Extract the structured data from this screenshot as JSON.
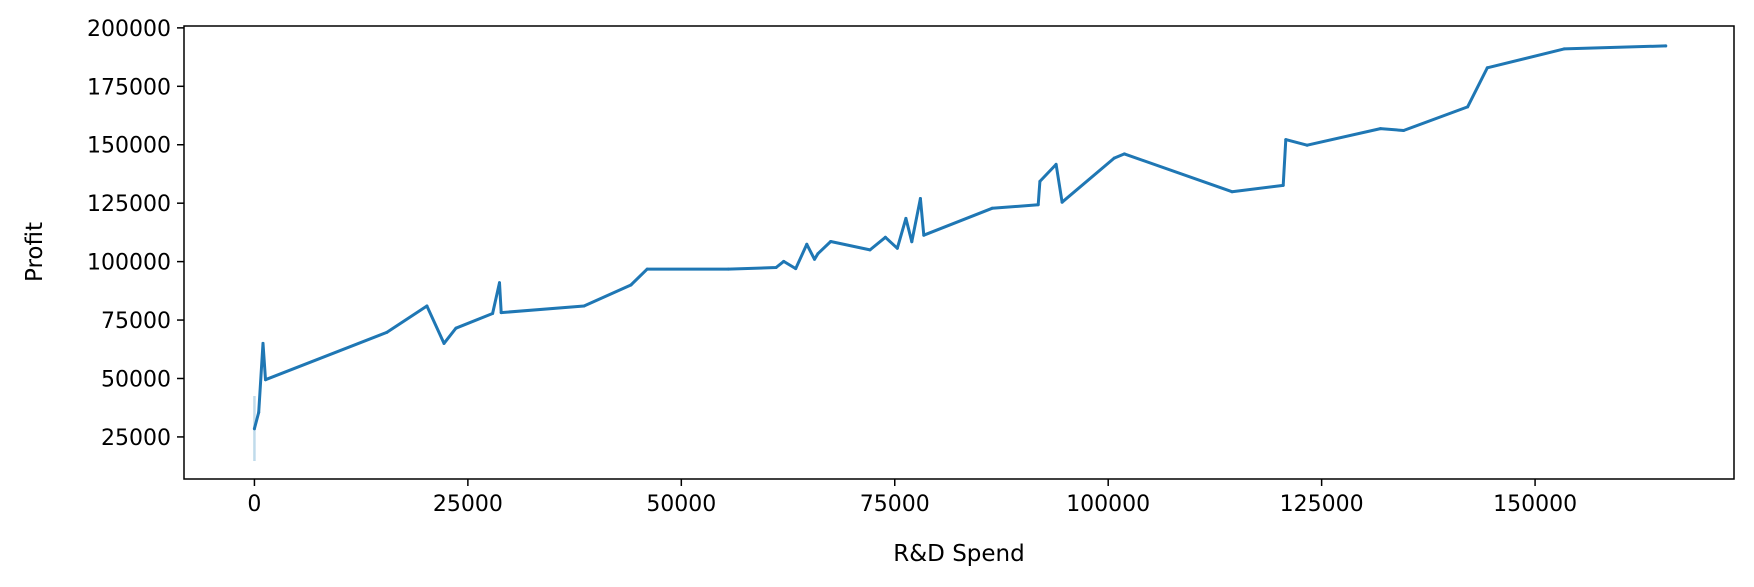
{
  "chart_data": {
    "type": "line",
    "title": "",
    "xlabel": "R&D Spend",
    "ylabel": "Profit",
    "xlim": [
      -8250,
      173300
    ],
    "ylim": [
      7000,
      200800
    ],
    "xticks": [
      0,
      25000,
      50000,
      75000,
      100000,
      125000,
      150000
    ],
    "yticks": [
      25000,
      50000,
      75000,
      100000,
      125000,
      150000,
      175000,
      200000
    ],
    "grid": false,
    "legend": "none",
    "colors": {
      "line": "#1f77b4",
      "band": "#a6cde3",
      "axes": "#000000"
    },
    "series": [
      {
        "x": [
          0,
          500,
          1000,
          1300,
          15500,
          20200,
          22200,
          23600,
          27900,
          28700,
          28900,
          38600,
          44100,
          46000,
          55500,
          61100,
          61990,
          63400,
          64700,
          65600,
          66000,
          67500,
          72100,
          73900,
          75300,
          76300,
          77000,
          78000,
          78400,
          86400,
          91800,
          92000,
          93900,
          94600,
          100700,
          101900,
          114500,
          120500,
          120800,
          123300,
          131900,
          134600,
          142100,
          144400,
          153400,
          165300
        ],
        "y": [
          28500,
          35500,
          65000,
          49500,
          69700,
          81000,
          65000,
          71500,
          77800,
          91000,
          78200,
          81000,
          90000,
          96800,
          96800,
          97500,
          100100,
          97000,
          107400,
          101000,
          103400,
          108600,
          105000,
          110400,
          105700,
          118500,
          108500,
          127000,
          111300,
          122800,
          124300,
          134300,
          141600,
          125400,
          144300,
          146100,
          129900,
          132600,
          152200,
          149800,
          156900,
          156100,
          166200,
          182900,
          191000,
          192300
        ]
      }
    ],
    "band": {
      "x": 0,
      "ylow": 14700,
      "yhigh": 42500
    }
  }
}
